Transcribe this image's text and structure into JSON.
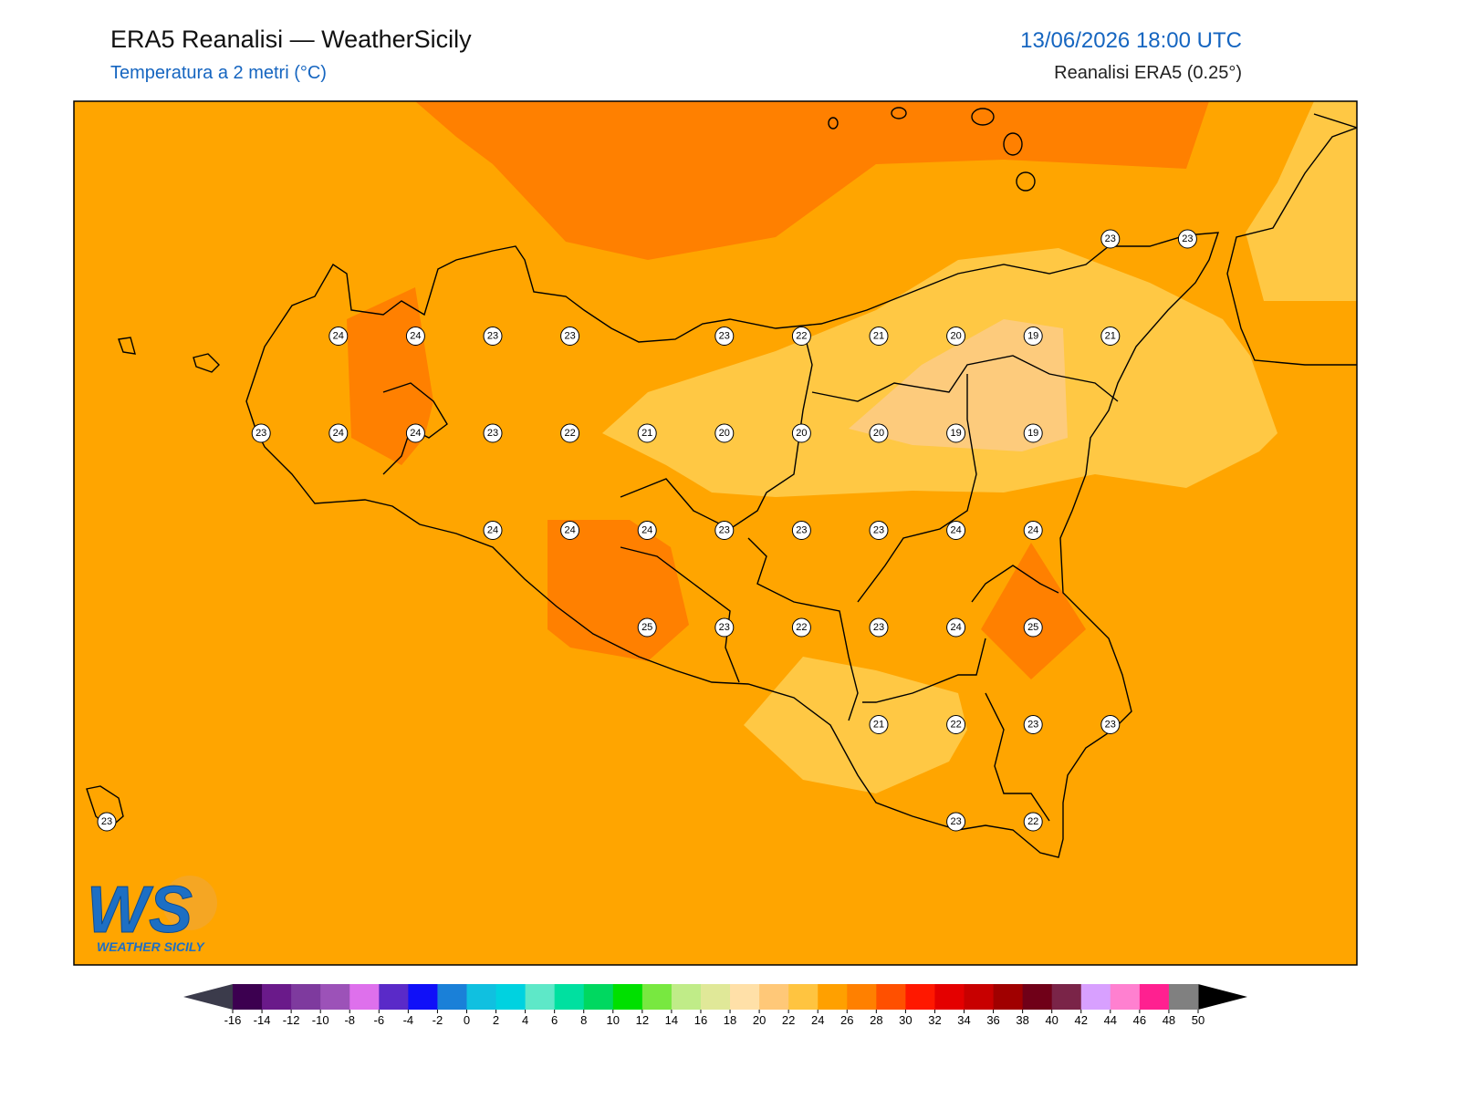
{
  "header": {
    "title": "ERA5 Reanalisi — WeatherSicily",
    "subtitle": "Temperatura a 2 metri (°C)",
    "datetime": "13/06/2026 18:00 UTC",
    "source": "Reanalisi ERA5 (0.25°)"
  },
  "stations": [
    [
      null,
      null,
      null,
      null,
      null,
      null,
      null,
      null,
      null,
      null,
      null,
      null,
      null,
      23,
      23
    ],
    [
      null,
      null,
      null,
      24,
      24,
      23,
      23,
      null,
      23,
      22,
      21,
      20,
      19,
      21,
      null
    ],
    [
      null,
      null,
      23,
      24,
      24,
      23,
      22,
      21,
      20,
      20,
      20,
      19,
      19,
      null,
      null
    ],
    [
      null,
      null,
      null,
      null,
      null,
      24,
      24,
      24,
      23,
      23,
      23,
      24,
      24,
      null,
      null
    ],
    [
      null,
      null,
      null,
      null,
      null,
      null,
      null,
      25,
      23,
      22,
      23,
      24,
      25,
      null,
      null
    ],
    [
      null,
      null,
      null,
      null,
      null,
      null,
      null,
      null,
      null,
      null,
      21,
      22,
      23,
      23,
      null
    ],
    [
      23,
      null,
      null,
      null,
      null,
      null,
      null,
      null,
      null,
      null,
      null,
      23,
      22,
      null,
      null
    ]
  ],
  "colorbar": {
    "ticks": [
      -16,
      -14,
      -12,
      -10,
      -8,
      -6,
      -4,
      -2,
      0,
      2,
      4,
      6,
      8,
      10,
      12,
      14,
      16,
      18,
      20,
      22,
      24,
      26,
      28,
      30,
      32,
      34,
      36,
      38,
      40,
      42,
      44,
      46,
      48,
      50
    ],
    "colors": [
      "#3c0050",
      "#6a1a8a",
      "#7e3a9e",
      "#9c52b8",
      "#de70ec",
      "#5a2ac8",
      "#1010f8",
      "#1a80d8",
      "#10c0e0",
      "#00d2e0",
      "#5ee8c8",
      "#00e0a0",
      "#00d860",
      "#00e000",
      "#78e840",
      "#c0ec88",
      "#e0e898",
      "#ffe0a8",
      "#ffc878",
      "#ffc440",
      "#ffa000",
      "#ff8000",
      "#ff5000",
      "#ff1800",
      "#e40000",
      "#c80000",
      "#a00000",
      "#700018",
      "#7a2448",
      "#d8a0ff",
      "#ff80d0",
      "#ff2090",
      "#808080",
      "#3a3a3a"
    ],
    "under": "#3b3b4b",
    "over": "#000000"
  },
  "logo": {
    "mark": "WS",
    "name": "WEATHER SICILY"
  }
}
